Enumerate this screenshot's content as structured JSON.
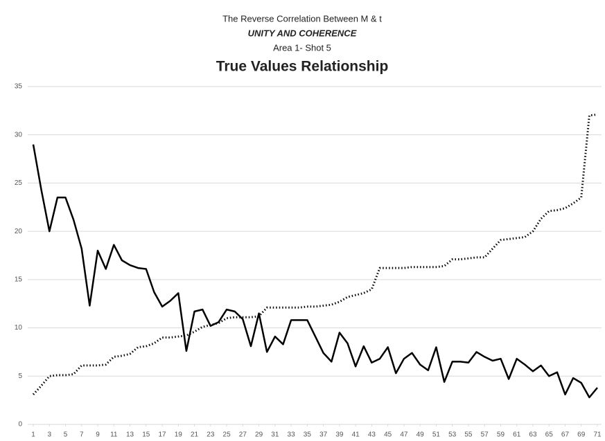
{
  "chart_data": {
    "type": "line",
    "title": "The Reverse Correlation Between M & t",
    "subtitle": "UNITY AND COHERENCE",
    "caption": "Area 1- Shot 5",
    "heading": "True Values Relationship",
    "x": [
      1,
      2,
      3,
      4,
      5,
      6,
      7,
      8,
      9,
      10,
      11,
      12,
      13,
      14,
      15,
      16,
      17,
      18,
      19,
      20,
      21,
      22,
      23,
      24,
      25,
      26,
      27,
      28,
      29,
      30,
      31,
      32,
      33,
      34,
      35,
      36,
      37,
      38,
      39,
      40,
      41,
      42,
      43,
      44,
      45,
      46,
      47,
      48,
      49,
      50,
      51,
      52,
      53,
      54,
      55,
      56,
      57,
      58,
      59,
      60,
      61,
      62,
      63,
      64,
      65,
      66,
      67,
      68,
      69,
      70,
      71
    ],
    "xlim": [
      1,
      71
    ],
    "xticks": [
      1,
      3,
      5,
      7,
      9,
      11,
      13,
      15,
      17,
      19,
      21,
      23,
      25,
      27,
      29,
      31,
      33,
      35,
      37,
      39,
      41,
      43,
      45,
      47,
      49,
      51,
      53,
      55,
      57,
      59,
      61,
      63,
      65,
      67,
      69,
      71
    ],
    "ylim": [
      0,
      35
    ],
    "yticks": [
      0,
      5,
      10,
      15,
      20,
      25,
      30,
      35
    ],
    "grid": true,
    "series": [
      {
        "color": "#000000",
        "style": "solid",
        "values": [
          29,
          24.3,
          20,
          23.5,
          23.5,
          21.2,
          18.2,
          12.3,
          18,
          16.1,
          18.6,
          17,
          16.5,
          16.2,
          16.1,
          13.7,
          12.2,
          12.8,
          13.6,
          7.6,
          11.7,
          11.9,
          10.2,
          10.6,
          11.9,
          11.7,
          10.9,
          8.1,
          11.5,
          7.5,
          9.1,
          8.3,
          10.8,
          10.8,
          10.8,
          9.1,
          7.4,
          6.5,
          9.5,
          8.4,
          6,
          8.1,
          6.4,
          6.8,
          8,
          5.3,
          6.8,
          7.4,
          6.2,
          5.6,
          8,
          4.4,
          6.5,
          6.5,
          6.4,
          7.5,
          7,
          6.6,
          6.8,
          4.7,
          6.8,
          6.2,
          5.5,
          6.1,
          5,
          5.4,
          3.1,
          4.8,
          4.3,
          2.8,
          3.8
        ]
      },
      {
        "color": "#000000",
        "style": "dotted",
        "values": [
          3.1,
          4,
          5,
          5.1,
          5.1,
          5.2,
          6.1,
          6.1,
          6.1,
          6.2,
          7,
          7.1,
          7.3,
          8,
          8.1,
          8.4,
          9,
          9,
          9.1,
          9.2,
          9.6,
          10.1,
          10.3,
          10.5,
          11,
          11.1,
          11.1,
          11.1,
          11.2,
          12.1,
          12.1,
          12.1,
          12.1,
          12.1,
          12.2,
          12.2,
          12.3,
          12.4,
          12.7,
          13.2,
          13.4,
          13.6,
          14,
          16.2,
          16.2,
          16.2,
          16.2,
          16.3,
          16.3,
          16.3,
          16.3,
          16.4,
          17.1,
          17.1,
          17.2,
          17.3,
          17.3,
          18.2,
          19.1,
          19.2,
          19.3,
          19.4,
          20,
          21.3,
          22.1,
          22.2,
          22.4,
          22.9,
          23.5,
          32,
          32.1
        ]
      }
    ]
  }
}
